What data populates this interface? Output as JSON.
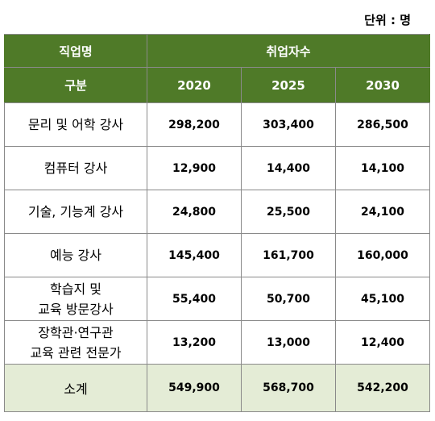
{
  "unit_label": "단위 : 명",
  "header": {
    "col1_top": "직업명",
    "span_top": "취업자수",
    "col1_sub": "구분",
    "years": [
      "2020",
      "2025",
      "2030"
    ]
  },
  "rows": [
    {
      "label_lines": [
        "문리 및 어학 강사"
      ],
      "values": [
        "298,200",
        "303,400",
        "286,500"
      ]
    },
    {
      "label_lines": [
        "컴퓨터 강사"
      ],
      "values": [
        "12,900",
        "14,400",
        "14,100"
      ]
    },
    {
      "label_lines": [
        "기술, 기능계 강사"
      ],
      "values": [
        "24,800",
        "25,500",
        "24,100"
      ]
    },
    {
      "label_lines": [
        "예능 강사"
      ],
      "values": [
        "145,400",
        "161,700",
        "160,000"
      ]
    },
    {
      "label_lines": [
        "학습지 및",
        "교육 방문강사"
      ],
      "values": [
        "55,400",
        "50,700",
        "45,100"
      ]
    },
    {
      "label_lines": [
        "장학관·연구관",
        "교육 관련 전문가"
      ],
      "values": [
        "13,200",
        "13,000",
        "12,400"
      ]
    }
  ],
  "total": {
    "label": "소계",
    "values": [
      "549,900",
      "568,700",
      "542,200"
    ]
  }
}
